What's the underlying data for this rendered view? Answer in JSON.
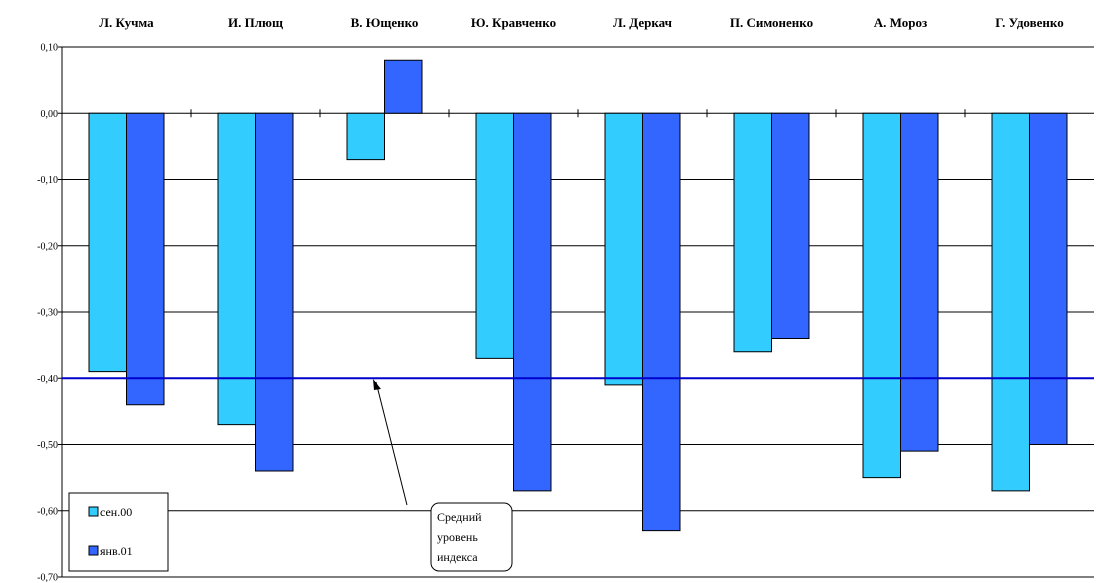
{
  "chart_data": {
    "type": "bar",
    "categories": [
      "Л. Кучма",
      "И. Плющ",
      "В. Ющенко",
      "Ю. Кравченко",
      "Л. Деркач",
      "П. Симоненко",
      "А. Мороз",
      "Г. Удовенко"
    ],
    "series": [
      {
        "name": "сен.00",
        "color": "#33ccff",
        "values": [
          -0.39,
          -0.47,
          -0.07,
          -0.37,
          -0.41,
          -0.36,
          -0.55,
          -0.57
        ]
      },
      {
        "name": "янв.01",
        "color": "#3366ff",
        "values": [
          -0.44,
          -0.54,
          0.08,
          -0.57,
          -0.63,
          -0.34,
          -0.51,
          -0.5
        ]
      }
    ],
    "ylim": [
      -0.7,
      0.1
    ],
    "yticks": [
      "0,10",
      "0,00",
      "-0,10",
      "-0,20",
      "-0,30",
      "-0,40",
      "-0,50",
      "-0,60",
      "-0,70"
    ],
    "grid": true,
    "legend_position": "bottom-left",
    "reference_line": {
      "value": -0.4,
      "color": "#0000cc"
    },
    "annotation": {
      "lines": [
        "Средний",
        "уровень",
        "индекса"
      ]
    }
  }
}
